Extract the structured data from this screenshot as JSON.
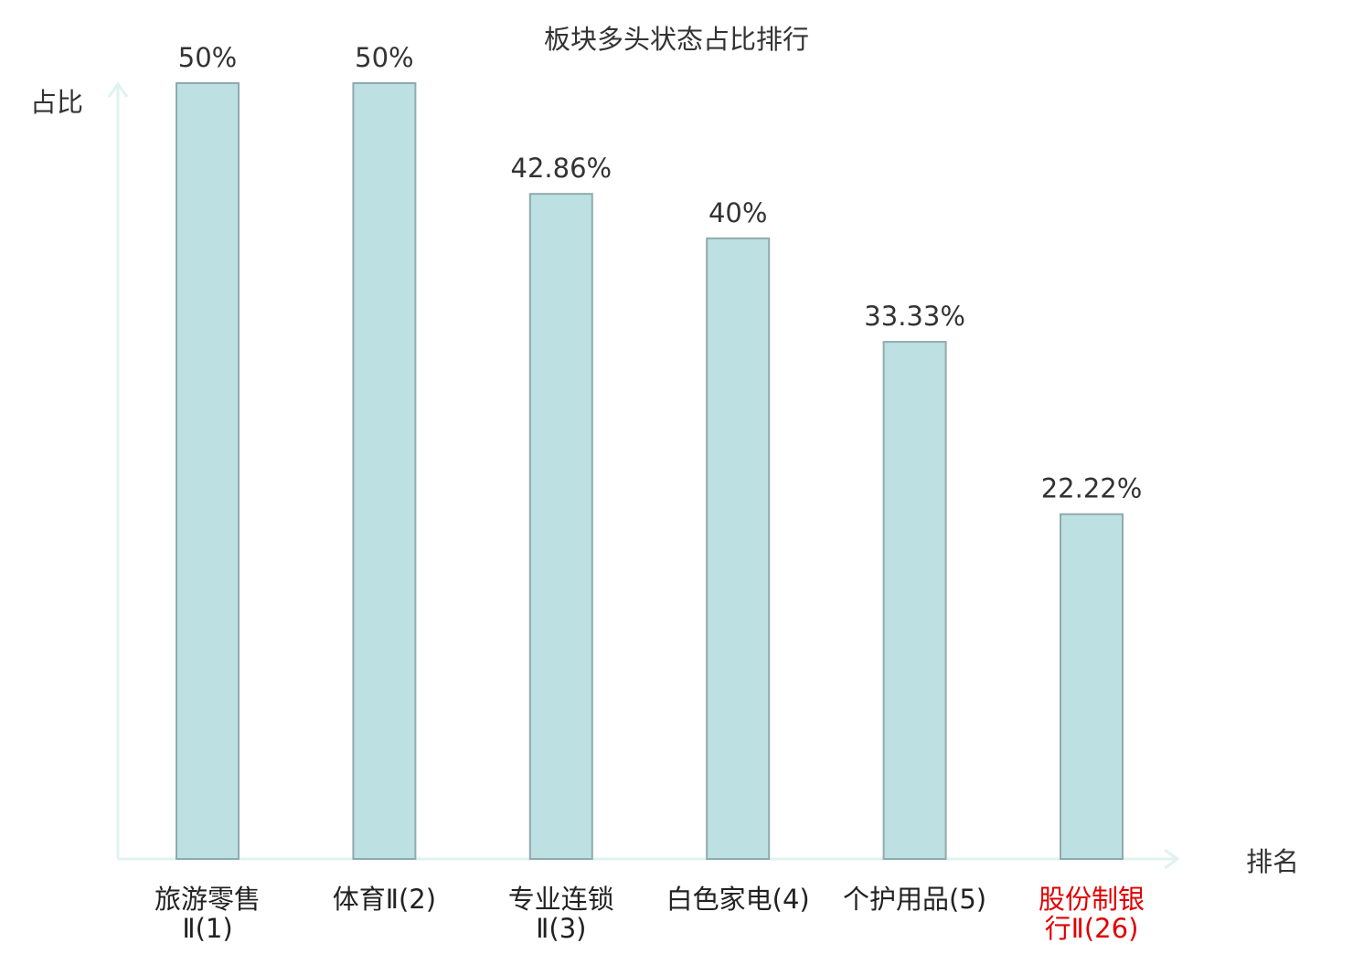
{
  "chart_data": {
    "type": "bar",
    "title": "板块多头状态占比排行",
    "ylabel": "占比",
    "xlabel": "排名",
    "ylim": [
      0,
      50
    ],
    "grid": false,
    "legend": "none",
    "categories": [
      [
        "旅游零售",
        "Ⅱ(1)"
      ],
      [
        "体育Ⅱ(2)"
      ],
      [
        "专业连锁",
        "Ⅱ(3)"
      ],
      [
        "白色家电(4)"
      ],
      [
        "个护用品(5)"
      ],
      [
        "股份制银",
        "行Ⅱ(26)"
      ]
    ],
    "values": [
      50,
      50,
      42.86,
      40,
      33.33,
      22.22
    ],
    "value_labels": [
      "50%",
      "50%",
      "42.86%",
      "40%",
      "33.33%",
      "22.22%"
    ],
    "highlight_index": 5
  },
  "colors": {
    "bar_fill": "#bde0e2",
    "bar_stroke": "#8faaae",
    "axis": "#e0f2f0",
    "text": "#333333",
    "value_text": "#333333",
    "highlight": "#e00000"
  }
}
